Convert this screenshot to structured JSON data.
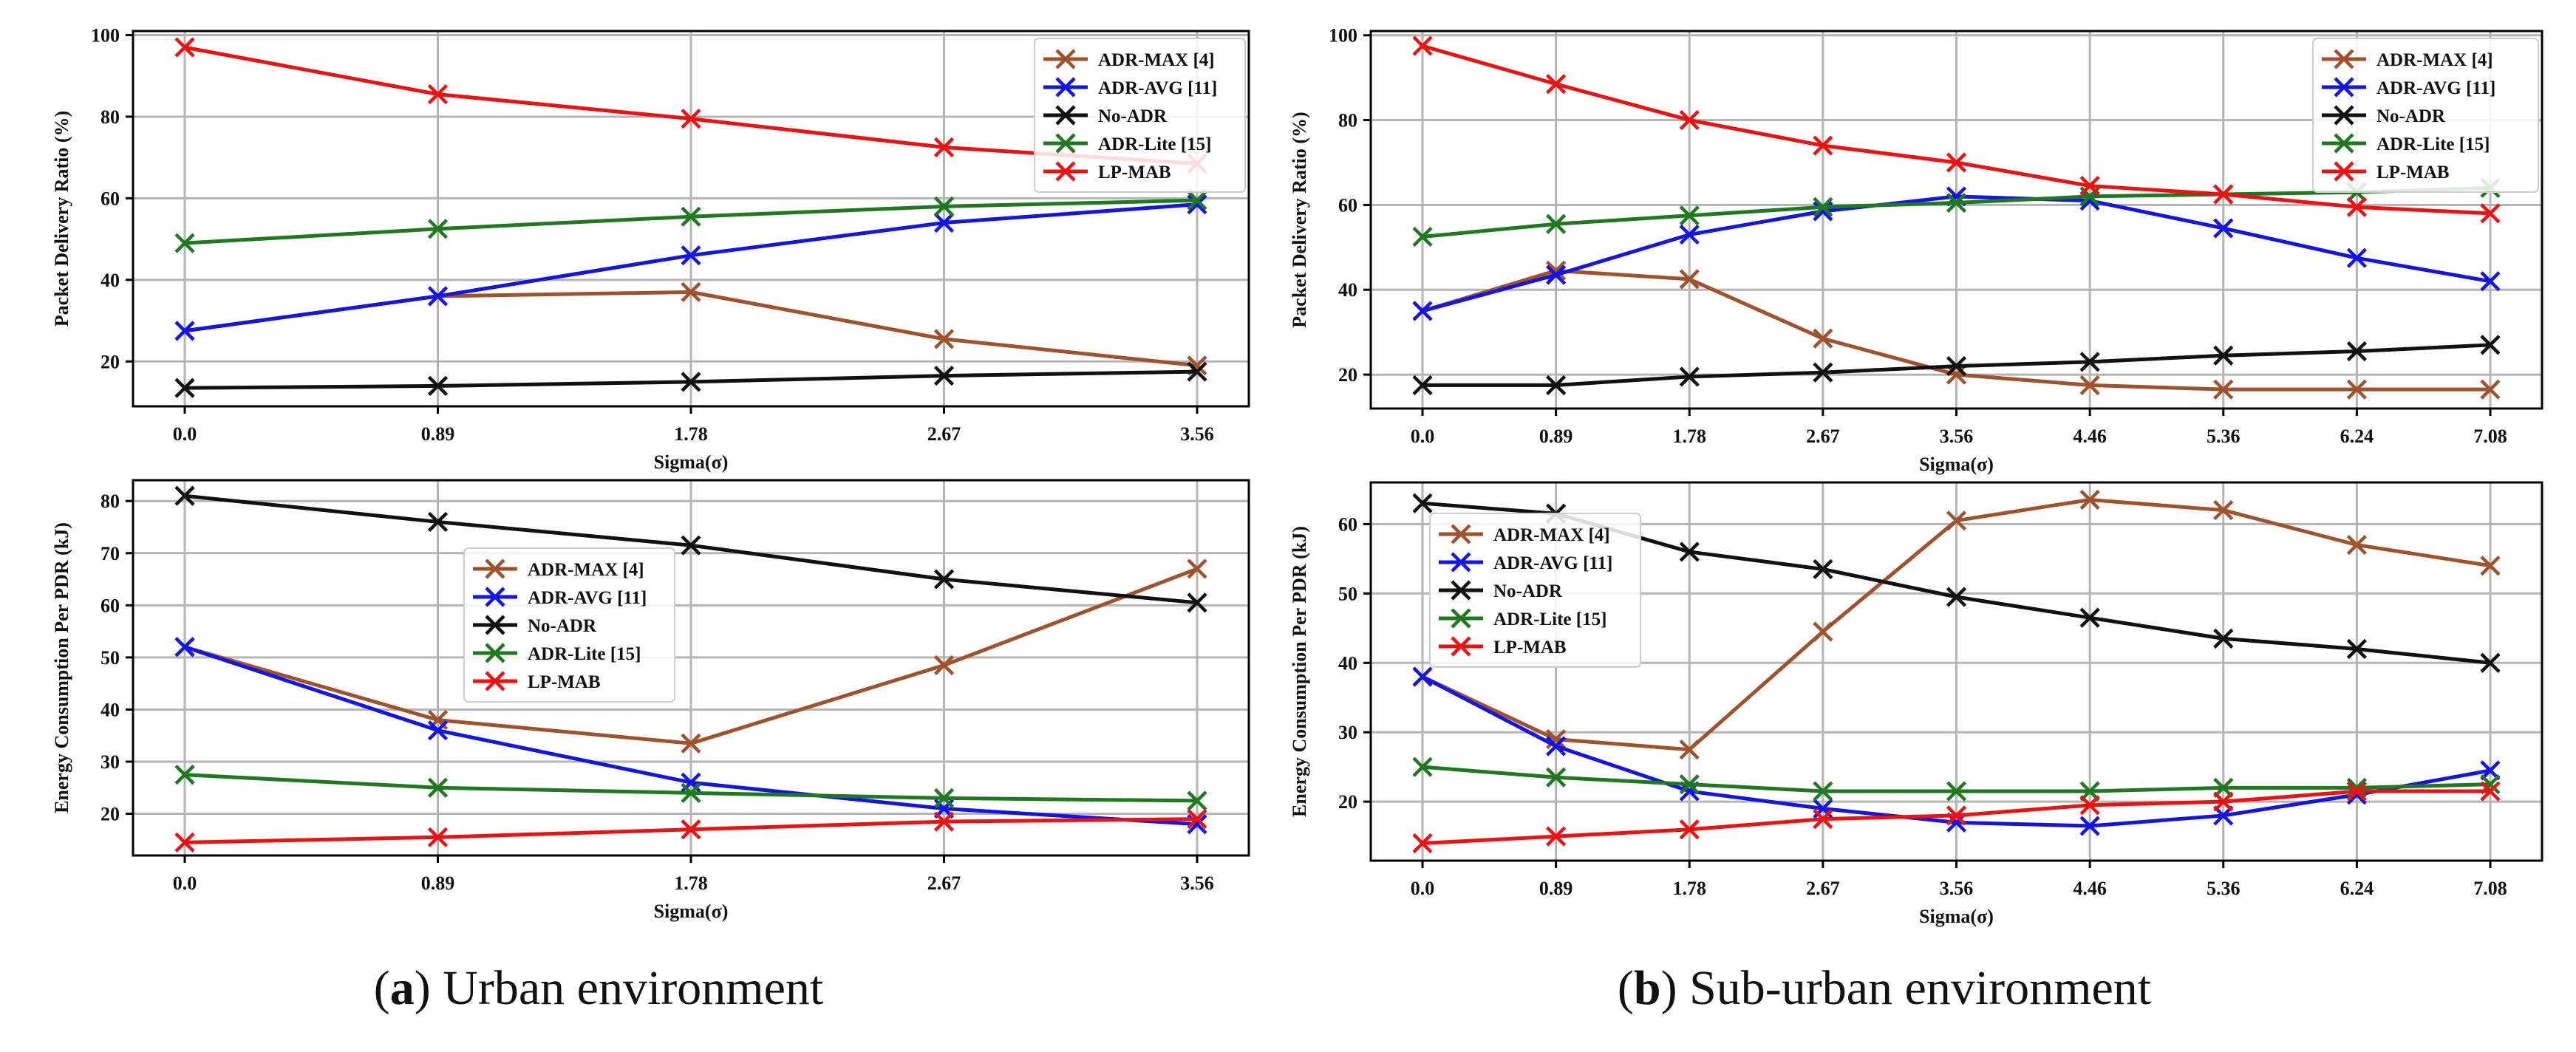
{
  "figure": {
    "captions": [
      {
        "letter": "a",
        "open": "(",
        "close": ")",
        "text": " Urban environment"
      },
      {
        "letter": "b",
        "open": "(",
        "close": ")",
        "text": " Sub-urban environment"
      }
    ]
  },
  "colors": {
    "ADR-MAX": "#a0522d",
    "ADR-AVG": "#1414e6",
    "No-ADR": "#111111",
    "ADR-Lite": "#1f7a1f",
    "LP-MAB": "#ee1111"
  },
  "chart_data": [
    {
      "type": "line",
      "panel": "urban-pdr",
      "title": "",
      "xlabel": "Sigma(σ)",
      "ylabel": "Packet Delivery Ratio (%)",
      "categories": [
        "0.0",
        "0.89",
        "1.78",
        "2.67",
        "3.56"
      ],
      "ylim": [
        9,
        101
      ],
      "yticks": [
        20,
        40,
        60,
        80,
        100
      ],
      "grid": true,
      "legend_position": "top-right",
      "series": [
        {
          "key": "ADR-MAX",
          "name": "ADR-MAX  [4]",
          "values": [
            27.5,
            36,
            37,
            25.5,
            19
          ]
        },
        {
          "key": "ADR-AVG",
          "name": "ADR-AVG [11]",
          "values": [
            27.5,
            36,
            46,
            54,
            58.5
          ]
        },
        {
          "key": "No-ADR",
          "name": "No-ADR",
          "values": [
            13.5,
            14,
            15,
            16.5,
            17.5
          ]
        },
        {
          "key": "ADR-Lite",
          "name": "ADR-Lite [15]",
          "values": [
            49,
            52.5,
            55.5,
            58,
            59.5
          ]
        },
        {
          "key": "LP-MAB",
          "name": "LP-MAB",
          "values": [
            97,
            85.5,
            79.5,
            72.5,
            68.5
          ]
        }
      ]
    },
    {
      "type": "line",
      "panel": "suburban-pdr",
      "title": "",
      "xlabel": "Sigma(σ)",
      "ylabel": "Packet Delivery Ratio (%)",
      "categories": [
        "0.0",
        "0.89",
        "1.78",
        "2.67",
        "3.56",
        "4.46",
        "5.36",
        "6.24",
        "7.08"
      ],
      "ylim": [
        12,
        101
      ],
      "yticks": [
        20,
        40,
        60,
        80,
        100
      ],
      "grid": true,
      "legend_position": "top-right",
      "series": [
        {
          "key": "ADR-MAX",
          "name": "ADR-MAX  [4]",
          "values": [
            35,
            44.5,
            42.5,
            28.5,
            20,
            17.5,
            16.5,
            16.5,
            16.5
          ]
        },
        {
          "key": "ADR-AVG",
          "name": "ADR-AVG [11]",
          "values": [
            35,
            43.5,
            53,
            58.5,
            62,
            61,
            54.5,
            47.5,
            42
          ]
        },
        {
          "key": "No-ADR",
          "name": "No-ADR",
          "values": [
            17.5,
            17.5,
            19.5,
            20.5,
            22,
            23,
            24.5,
            25.5,
            27
          ]
        },
        {
          "key": "ADR-Lite",
          "name": "ADR-Lite [15]",
          "values": [
            52.5,
            55.5,
            57.5,
            59.5,
            60.5,
            62,
            62.5,
            63,
            64
          ]
        },
        {
          "key": "LP-MAB",
          "name": "LP-MAB",
          "values": [
            97.5,
            88.5,
            80,
            74,
            70,
            64.5,
            62.5,
            59.5,
            58
          ]
        }
      ]
    },
    {
      "type": "line",
      "panel": "urban-energy",
      "title": "",
      "xlabel": "Sigma(σ)",
      "ylabel": "Energy Consumption Per PDR (kJ)",
      "categories": [
        "0.0",
        "0.89",
        "1.78",
        "2.67",
        "3.56"
      ],
      "ylim": [
        12,
        84
      ],
      "yticks": [
        20,
        30,
        40,
        50,
        60,
        70,
        80
      ],
      "grid": true,
      "legend_position": "center",
      "series": [
        {
          "key": "ADR-MAX",
          "name": "ADR-MAX  [4]",
          "values": [
            52,
            38,
            33.5,
            48.5,
            67
          ]
        },
        {
          "key": "ADR-AVG",
          "name": "ADR-AVG [11]",
          "values": [
            52,
            36,
            26,
            21,
            18
          ]
        },
        {
          "key": "No-ADR",
          "name": "No-ADR",
          "values": [
            81,
            76,
            71.5,
            65,
            60.5
          ]
        },
        {
          "key": "ADR-Lite",
          "name": "ADR-Lite [15]",
          "values": [
            27.5,
            25,
            24,
            23,
            22.5
          ]
        },
        {
          "key": "LP-MAB",
          "name": "LP-MAB",
          "values": [
            14.5,
            15.5,
            17,
            18.5,
            19
          ]
        }
      ]
    },
    {
      "type": "line",
      "panel": "suburban-energy",
      "title": "",
      "xlabel": "Sigma(σ)",
      "ylabel": "Energy Consumption Per PDR (kJ)",
      "categories": [
        "0.0",
        "0.89",
        "1.78",
        "2.67",
        "3.56",
        "4.46",
        "5.36",
        "6.24",
        "7.08"
      ],
      "ylim": [
        11.5,
        66
      ],
      "yticks": [
        20,
        30,
        40,
        50,
        60
      ],
      "grid": true,
      "legend_position": "upper-left",
      "series": [
        {
          "key": "ADR-MAX",
          "name": "ADR-MAX  [4]",
          "values": [
            38,
            29,
            27.5,
            44.5,
            60.5,
            63.5,
            62,
            57,
            54
          ]
        },
        {
          "key": "ADR-AVG",
          "name": "ADR-AVG [11]",
          "values": [
            38,
            28,
            21.5,
            19,
            17,
            16.5,
            18,
            21,
            24.5
          ]
        },
        {
          "key": "No-ADR",
          "name": "No-ADR",
          "values": [
            63,
            61.5,
            56,
            53.5,
            49.5,
            46.5,
            43.5,
            42,
            40
          ]
        },
        {
          "key": "ADR-Lite",
          "name": "ADR-Lite [15]",
          "values": [
            25,
            23.5,
            22.5,
            21.5,
            21.5,
            21.5,
            22,
            22,
            22.5
          ]
        },
        {
          "key": "LP-MAB",
          "name": "LP-MAB",
          "values": [
            14,
            15,
            16,
            17.5,
            18,
            19.5,
            20,
            21.5,
            21.5
          ]
        }
      ]
    }
  ]
}
